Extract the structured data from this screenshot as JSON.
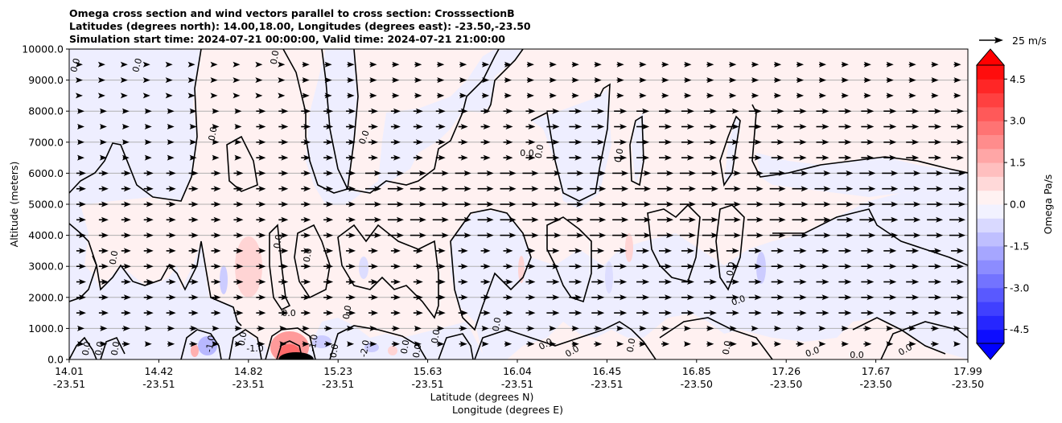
{
  "titles": [
    "Omega cross section and wind vectors parallel to cross section: CrosssectionB",
    "Latitudes (degrees north): 14.00,18.00, Longitudes (degrees east): -23.50,-23.50",
    "Simulation start time: 2024-07-21 00:00:00, Valid time: 2024-07-21 21:00:00"
  ],
  "chart_data": {
    "type": "heatmap",
    "title": "Omega cross section and wind vectors parallel to cross section: CrosssectionB",
    "ylabel": "Altitude (meters)",
    "xlabel_lines": [
      "Latitude (degrees N)",
      "Longitude (degrees E)"
    ],
    "ylim": [
      0,
      10000
    ],
    "y_ticks": [
      "0.0",
      "1000.0",
      "2000.0",
      "3000.0",
      "4000.0",
      "5000.0",
      "6000.0",
      "7000.0",
      "8000.0",
      "9000.0",
      "10000.0"
    ],
    "y_tick_values": [
      0,
      1000,
      2000,
      3000,
      4000,
      5000,
      6000,
      7000,
      8000,
      9000,
      10000
    ],
    "x_ticks": [
      {
        "lat": "14.01",
        "lon": "-23.51"
      },
      {
        "lat": "14.42",
        "lon": "-23.51"
      },
      {
        "lat": "14.82",
        "lon": "-23.51"
      },
      {
        "lat": "15.23",
        "lon": "-23.51"
      },
      {
        "lat": "15.63",
        "lon": "-23.51"
      },
      {
        "lat": "16.04",
        "lon": "-23.51"
      },
      {
        "lat": "16.45",
        "lon": "-23.51"
      },
      {
        "lat": "16.85",
        "lon": "-23.50"
      },
      {
        "lat": "17.26",
        "lon": "-23.50"
      },
      {
        "lat": "17.67",
        "lon": "-23.50"
      },
      {
        "lat": "17.99",
        "lon": "-23.50"
      }
    ],
    "xlim": [
      14.01,
      17.99
    ],
    "grid": "horizontal",
    "colorbar": {
      "label": "Omega Pa/s",
      "range": [
        -5.0,
        5.0
      ],
      "extend": "both",
      "ticks": [
        "-4.5",
        "-3.0",
        "-1.5",
        "0.0",
        "1.5",
        "3.0",
        "4.5"
      ],
      "tick_values": [
        -4.5,
        -3.0,
        -1.5,
        0.0,
        1.5,
        3.0,
        4.5
      ],
      "levels": 20,
      "colormap": "bwr"
    },
    "quiver_key": {
      "label": "25 m/s",
      "speed": 25
    },
    "contour_line_labels": [
      "0.0",
      "0.0",
      "0.0",
      "0.0",
      "0.0",
      "0.0",
      "0.0",
      "0.0",
      "0.0",
      "0.0",
      "0.0",
      "0.0",
      "0.0",
      "0.0",
      "0.0",
      "0.0",
      "0.0",
      "0.0",
      "0.0",
      "0.0",
      "0.0",
      "0.0",
      "0.0",
      "0.0",
      "0.0",
      "0.0",
      "0.0",
      "0.0",
      "0.0",
      "0.0",
      "0.0",
      "-1.0",
      "-1.0",
      "-1.0",
      "-2.0"
    ],
    "wind_vector_rows_m": [
      500,
      1000,
      1500,
      2000,
      2500,
      3000,
      3500,
      4000,
      4500,
      5000,
      5500,
      6000,
      6500,
      7000,
      7500,
      8000,
      8500,
      9000,
      9500
    ]
  }
}
